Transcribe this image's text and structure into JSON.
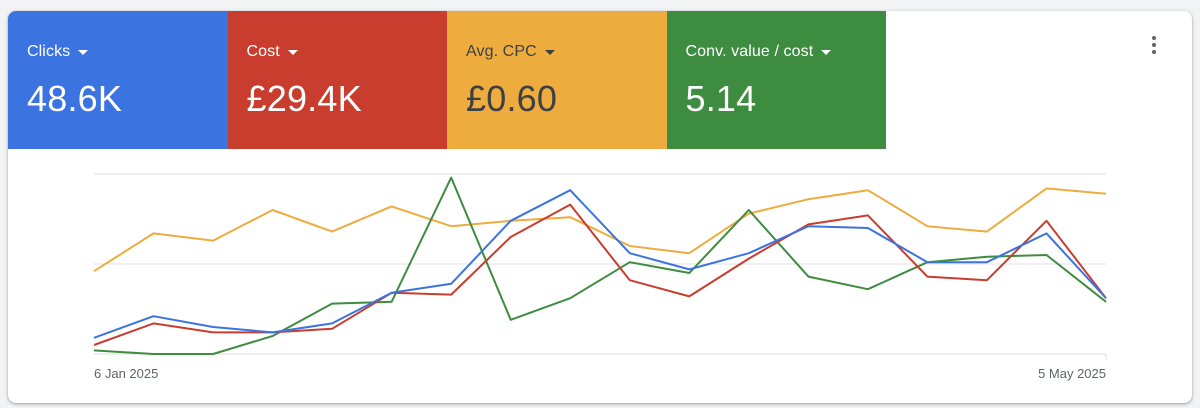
{
  "tiles": [
    {
      "label": "Clicks",
      "value": "48.6K",
      "color": "#3b73e0"
    },
    {
      "label": "Cost",
      "value": "£29.4K",
      "color": "#c83d2d"
    },
    {
      "label": "Avg. CPC",
      "value": "£0.60",
      "color": "#eeac3e"
    },
    {
      "label": "Conv. value / cost",
      "value": "5.14",
      "color": "#3d8c40"
    }
  ],
  "menu": {
    "icon": "more-vert-icon"
  },
  "chart_data": {
    "type": "line",
    "x_tick_labels": [
      "6 Jan 2025",
      "5 May 2025"
    ],
    "grid": true,
    "legend": "tiles",
    "ylim": [
      0,
      100
    ],
    "y_note": "normalized per series (0 = lowest gridline, 100 = top gridline)",
    "series": [
      {
        "name": "Clicks",
        "color": "#3b73e0",
        "values": [
          9,
          21,
          15,
          12,
          17,
          34,
          39,
          74,
          91,
          56,
          47,
          56,
          71,
          70,
          51,
          51,
          67,
          31
        ]
      },
      {
        "name": "Cost",
        "color": "#c83d2d",
        "values": [
          5,
          17,
          12,
          12,
          14,
          34,
          33,
          65,
          83,
          41,
          32,
          53,
          72,
          77,
          43,
          41,
          74,
          31
        ]
      },
      {
        "name": "Avg. CPC",
        "color": "#eeac3e",
        "values": [
          46,
          67,
          63,
          80,
          68,
          82,
          71,
          74,
          76,
          60,
          56,
          78,
          86,
          91,
          71,
          68,
          92,
          89
        ]
      },
      {
        "name": "Conv. value / cost",
        "color": "#3d8c40",
        "values": [
          2,
          0,
          0,
          10,
          28,
          29,
          98,
          19,
          31,
          51,
          45,
          80,
          43,
          36,
          51,
          54,
          55,
          29
        ]
      }
    ]
  }
}
